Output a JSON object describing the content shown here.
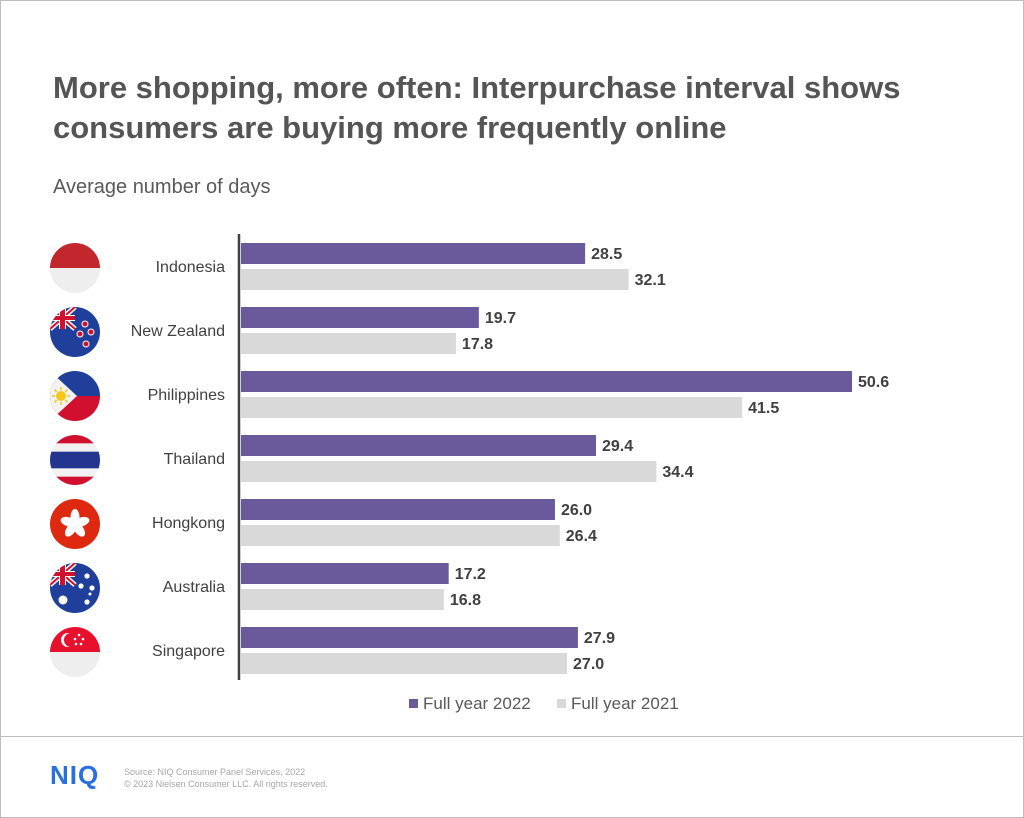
{
  "title": "More shopping, more often: Interpurchase interval shows consumers are buying more frequently online",
  "subtitle": "Average number of days",
  "colors": {
    "series_2022": "#6a5a9b",
    "series_2021": "#d9d9d9",
    "axis": "#404040",
    "label": "#404040",
    "logo": "#2a6fe0"
  },
  "chart_data": {
    "type": "bar",
    "orientation": "horizontal",
    "categories": [
      "Indonesia",
      "New Zealand",
      "Philippines",
      "Thailand",
      "Hongkong",
      "Australia",
      "Singapore"
    ],
    "flag_icons": [
      "indonesia-flag-icon",
      "new-zealand-flag-icon",
      "philippines-flag-icon",
      "thailand-flag-icon",
      "hongkong-flag-icon",
      "australia-flag-icon",
      "singapore-flag-icon"
    ],
    "series": [
      {
        "name": "Full year 2022",
        "values": [
          28.5,
          19.7,
          50.6,
          29.4,
          26.0,
          17.2,
          27.9
        ],
        "labels": [
          "28.5",
          "19.7",
          "50.6",
          "29.4",
          "26.0",
          "17.2",
          "27.9"
        ]
      },
      {
        "name": "Full year 2021",
        "values": [
          32.1,
          17.8,
          41.5,
          34.4,
          26.4,
          16.8,
          27.0
        ],
        "labels": [
          "32.1",
          "17.8",
          "41.5",
          "34.4",
          "26.4",
          "16.8",
          "27.0"
        ]
      }
    ],
    "xlim": [
      0,
      50.6
    ],
    "grid": false,
    "legend_position": "bottom"
  },
  "footer": {
    "logo": "NIQ",
    "source_line": "Source: NIQ Consumer Panel Services, 2022",
    "copyright_line": "© 2023 Nielsen Consumer LLC. All rights reserved."
  }
}
